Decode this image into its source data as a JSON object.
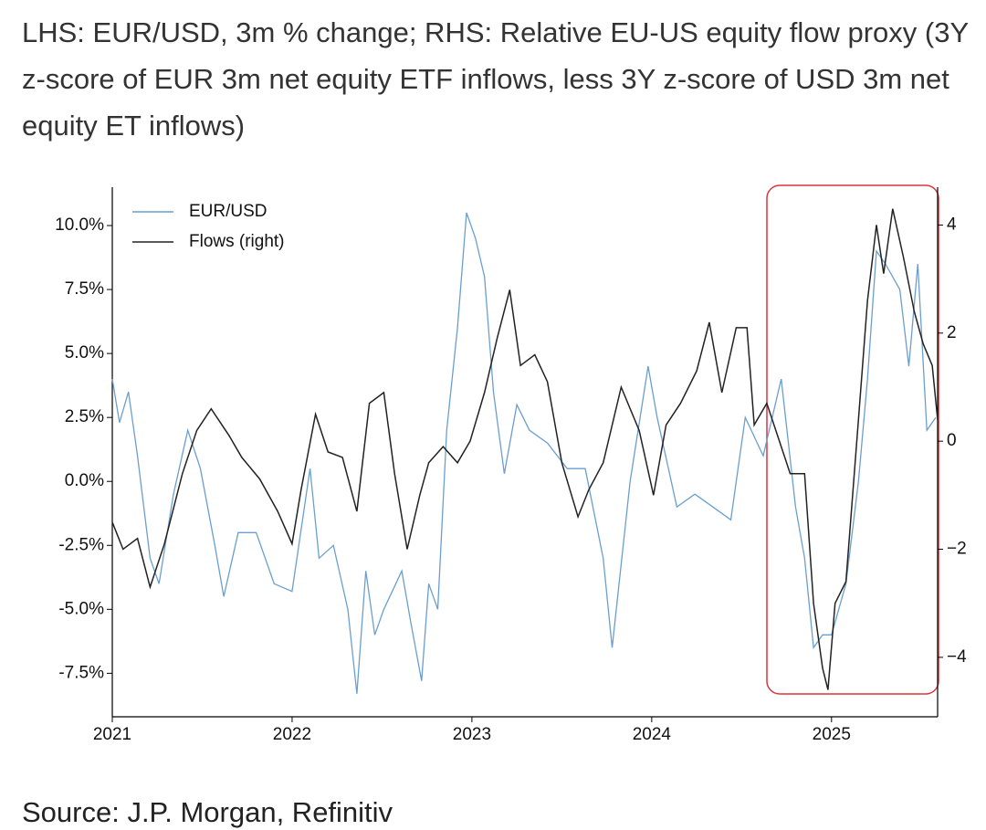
{
  "chart_data": {
    "type": "line",
    "title": "LHS: EUR/USD, 3m % change; RHS: Relative EU-US equity flow proxy (3Y z-score of EUR 3m net equity ETF inflows, less 3Y z-score of USD 3m net equity ET inflows)",
    "source": "Source: J.P. Morgan, Refinitiv",
    "xlim": [
      2021,
      2025.59
    ],
    "xticks": [
      2021,
      2022,
      2023,
      2024,
      2025
    ],
    "ylim": [
      -9.2,
      11.5
    ],
    "yticks": [
      {
        "value": -7.5,
        "label": "-7.5%"
      },
      {
        "value": -5,
        "label": "-5.0%"
      },
      {
        "value": -2.5,
        "label": "-2.5%"
      },
      {
        "value": 0,
        "label": "0.0%"
      },
      {
        "value": 2.5,
        "label": "2.5%"
      },
      {
        "value": 5,
        "label": "5.0%"
      },
      {
        "value": 7.5,
        "label": "7.5%"
      },
      {
        "value": 10,
        "label": "10.0%"
      }
    ],
    "y2lim": [
      -5.1,
      4.7
    ],
    "y2ticks": [
      {
        "value": -4,
        "label": "−4"
      },
      {
        "value": -2,
        "label": "−2"
      },
      0,
      2,
      4
    ],
    "legend": "upper left",
    "series": [
      {
        "name": "EUR/USD",
        "color": "#6a9fcf",
        "x": [
          2021.0,
          2021.04,
          2021.09,
          2021.14,
          2021.21,
          2021.26,
          2021.34,
          2021.42,
          2021.49,
          2021.57,
          2021.62,
          2021.7,
          2021.8,
          2021.9,
          2022.0,
          2022.1,
          2022.15,
          2022.23,
          2022.31,
          2022.36,
          2022.41,
          2022.46,
          2022.51,
          2022.61,
          2022.66,
          2022.72,
          2022.76,
          2022.81,
          2022.86,
          2022.92,
          2022.97,
          2023.02,
          2023.07,
          2023.12,
          2023.18,
          2023.25,
          2023.32,
          2023.42,
          2023.53,
          2023.63,
          2023.73,
          2023.78,
          2023.88,
          2023.98,
          2024.03,
          2024.14,
          2024.24,
          2024.34,
          2024.44,
          2024.52,
          2024.62,
          2024.72,
          2024.8,
          2024.85,
          2024.9,
          2024.95,
          2025.0,
          2025.08,
          2025.15,
          2025.2,
          2025.25,
          2025.3,
          2025.38,
          2025.43,
          2025.48,
          2025.53,
          2025.58
        ],
        "values": [
          4.0,
          2.3,
          3.5,
          1.0,
          -3.0,
          -4.0,
          -0.5,
          2.0,
          0.5,
          -2.5,
          -4.5,
          -2.0,
          -2.0,
          -4.0,
          -4.3,
          0.5,
          -3.0,
          -2.5,
          -5.0,
          -8.3,
          -3.5,
          -6.0,
          -5.0,
          -3.5,
          -5.5,
          -7.8,
          -4.0,
          -5.0,
          2.0,
          6.0,
          10.5,
          9.5,
          8.0,
          3.5,
          0.3,
          3.0,
          2.0,
          1.5,
          0.5,
          0.5,
          -3.0,
          -6.5,
          0.0,
          4.5,
          2.5,
          -1.0,
          -0.5,
          -1.0,
          -1.5,
          2.5,
          1.0,
          4.0,
          -1.0,
          -3.0,
          -6.5,
          -6.0,
          -6.0,
          -4.0,
          0.0,
          4.0,
          9.0,
          8.5,
          7.5,
          4.5,
          8.5,
          2.0,
          2.5
        ]
      },
      {
        "name": "Flows (right)",
        "color": "#222222",
        "axis": "y2",
        "x": [
          2021.0,
          2021.06,
          2021.14,
          2021.21,
          2021.29,
          2021.39,
          2021.47,
          2021.55,
          2021.65,
          2021.72,
          2021.82,
          2021.92,
          2022.0,
          2022.05,
          2022.13,
          2022.2,
          2022.28,
          2022.36,
          2022.43,
          2022.51,
          2022.57,
          2022.64,
          2022.71,
          2022.76,
          2022.84,
          2022.92,
          2022.99,
          2023.07,
          2023.14,
          2023.21,
          2023.27,
          2023.35,
          2023.42,
          2023.5,
          2023.59,
          2023.65,
          2023.73,
          2023.83,
          2023.93,
          2024.01,
          2024.08,
          2024.16,
          2024.25,
          2024.32,
          2024.39,
          2024.47,
          2024.53,
          2024.57,
          2024.64,
          2024.72,
          2024.77,
          2024.85,
          2024.9,
          2024.95,
          2024.98,
          2025.02,
          2025.08,
          2025.15,
          2025.2,
          2025.25,
          2025.29,
          2025.34,
          2025.4,
          2025.46,
          2025.51,
          2025.56,
          2025.59
        ],
        "values": [
          -1.5,
          -2.0,
          -1.8,
          -2.7,
          -1.9,
          -0.6,
          0.2,
          0.6,
          0.1,
          -0.3,
          -0.7,
          -1.3,
          -1.9,
          -0.9,
          0.5,
          -0.2,
          -0.3,
          -1.3,
          0.7,
          0.9,
          -0.6,
          -2.0,
          -1.0,
          -0.4,
          -0.1,
          -0.4,
          0.0,
          0.9,
          1.9,
          2.8,
          1.4,
          1.6,
          1.1,
          -0.4,
          -1.4,
          -0.9,
          -0.4,
          1.0,
          0.2,
          -1.0,
          0.3,
          0.7,
          1.3,
          2.2,
          0.9,
          2.1,
          2.1,
          0.3,
          0.7,
          -0.1,
          -0.6,
          -0.6,
          -3.0,
          -4.2,
          -4.6,
          -3.0,
          -2.6,
          0.4,
          2.6,
          4.0,
          3.1,
          4.3,
          3.4,
          2.4,
          1.8,
          1.4,
          0.4
        ]
      }
    ]
  }
}
